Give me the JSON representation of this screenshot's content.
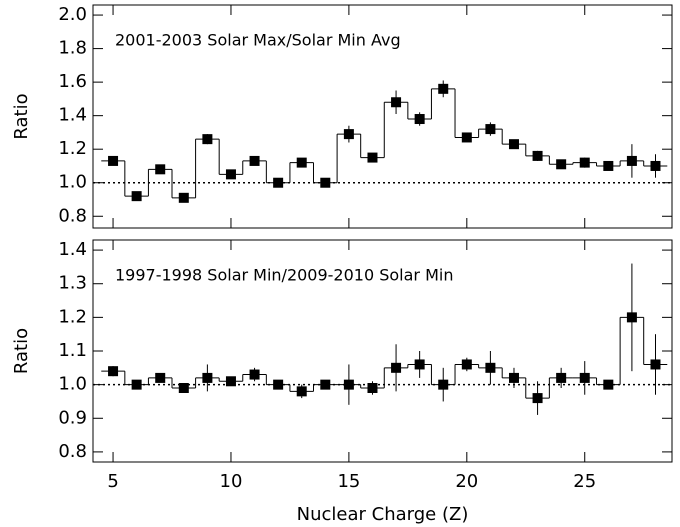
{
  "chart_data": [
    {
      "type": "step",
      "title": "2001-2003 Solar Max/Solar Min Avg",
      "ylabel": "Ratio",
      "x": [
        5,
        6,
        7,
        8,
        9,
        10,
        11,
        12,
        13,
        14,
        15,
        16,
        17,
        18,
        19,
        20,
        21,
        22,
        23,
        24,
        25,
        26,
        27,
        28
      ],
      "series": [
        {
          "color": "#000000",
          "values": [
            1.13,
            0.92,
            1.08,
            0.91,
            1.26,
            1.05,
            1.13,
            1.0,
            1.12,
            1.0,
            1.29,
            1.15,
            1.48,
            1.38,
            1.56,
            1.27,
            1.32,
            1.23,
            1.16,
            1.11,
            1.12,
            1.1,
            1.13,
            1.1
          ],
          "errors": [
            0.02,
            0.015,
            0.015,
            0.015,
            0.03,
            0.015,
            0.02,
            0.015,
            0.02,
            0.015,
            0.05,
            0.02,
            0.07,
            0.04,
            0.05,
            0.02,
            0.04,
            0.02,
            0.03,
            0.02,
            0.03,
            0.02,
            0.1,
            0.07
          ]
        }
      ],
      "xlim": [
        4.15,
        28.7
      ],
      "xticks": [
        5,
        10,
        15,
        20,
        25
      ],
      "ylim": [
        0.73,
        2.06
      ],
      "yticks": [
        0.8,
        {
          "value": 1,
          "label": "1.0"
        },
        1.2,
        1.4,
        1.6,
        1.8,
        {
          "value": 2,
          "label": "2.0"
        }
      ],
      "reference_line": 1
    },
    {
      "type": "step",
      "title": "1997-1998 Solar Min/2009-2010 Solar Min",
      "ylabel": "Ratio",
      "xlabel": "Nuclear Charge (Z)",
      "x": [
        5,
        6,
        7,
        8,
        9,
        10,
        11,
        12,
        13,
        14,
        15,
        16,
        17,
        18,
        19,
        20,
        21,
        22,
        23,
        24,
        25,
        26,
        27,
        28
      ],
      "series": [
        {
          "color": "#000000",
          "values": [
            1.04,
            1.0,
            1.02,
            0.99,
            1.02,
            1.01,
            1.03,
            1.0,
            0.98,
            1.0,
            1.0,
            0.99,
            1.05,
            1.06,
            1.0,
            1.06,
            1.05,
            1.02,
            0.96,
            1.02,
            1.02,
            1.0,
            1.2,
            1.06
          ],
          "errors": [
            0.015,
            0.008,
            0.008,
            0.008,
            0.04,
            0.01,
            0.02,
            0.008,
            0.02,
            0.008,
            0.06,
            0.02,
            0.07,
            0.04,
            0.05,
            0.02,
            0.05,
            0.03,
            0.05,
            0.03,
            0.05,
            0.01,
            0.16,
            0.09
          ]
        }
      ],
      "xlim": [
        4.15,
        28.7
      ],
      "xticks": [
        5,
        10,
        15,
        20,
        25
      ],
      "ylim": [
        0.77,
        1.43
      ],
      "yticks": [
        0.8,
        0.9,
        {
          "value": 1,
          "label": "1.0"
        },
        1.1,
        1.2,
        1.3,
        1.4
      ],
      "reference_line": 1
    }
  ]
}
